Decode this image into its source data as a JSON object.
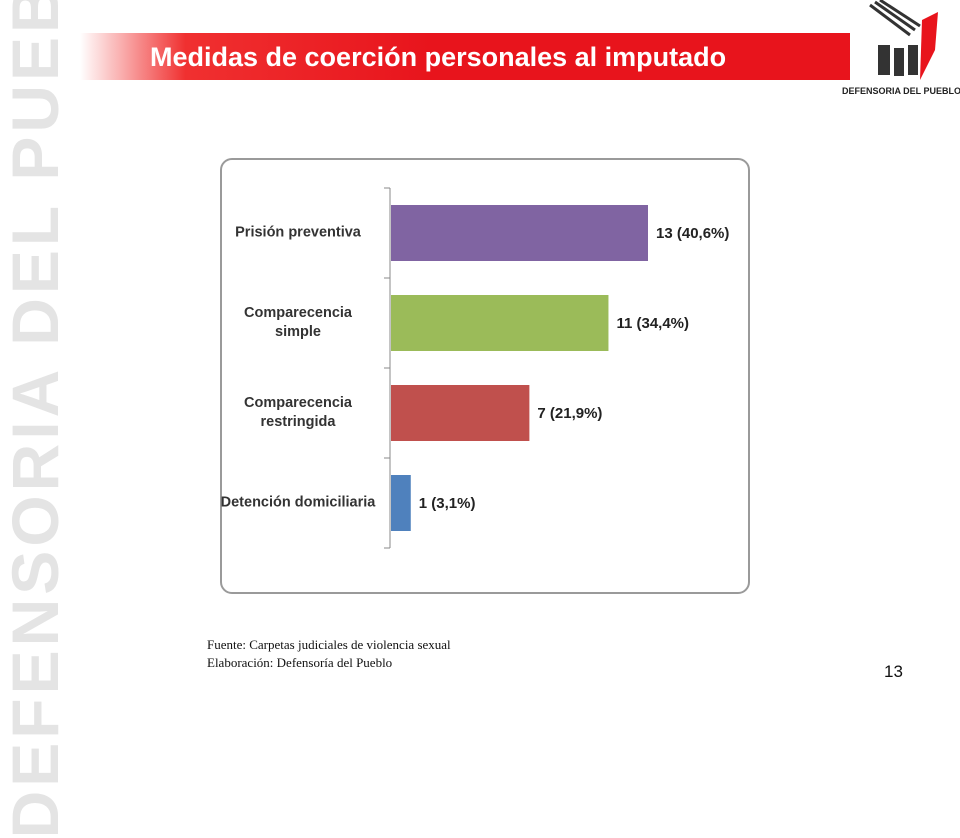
{
  "slide": {
    "title": "Medidas de coerción personales al imputado",
    "watermark": "DEFENSORIA DEL PUEBLO",
    "logo_text": "DEFENSORIA DEL PUEBLO",
    "source": "Fuente: Carpetas  judiciales de violencia sexual",
    "credit": "Elaboración: Defensoría del Pueblo",
    "page_number": "13"
  },
  "chart_data": {
    "type": "hbar",
    "categories": [
      "Prisión preventiva",
      "Comparecencia simple",
      "Comparecencia restringida",
      "Detención domiciliaria"
    ],
    "values": [
      13,
      11,
      7,
      1
    ],
    "value_labels": [
      "13 (40,6%)",
      "11 (34,4%)",
      "7 (21,9%)",
      "1 (3,1%)"
    ],
    "colors": [
      "#8064a2",
      "#9bbb59",
      "#c0504d",
      "#4f81bd"
    ]
  }
}
